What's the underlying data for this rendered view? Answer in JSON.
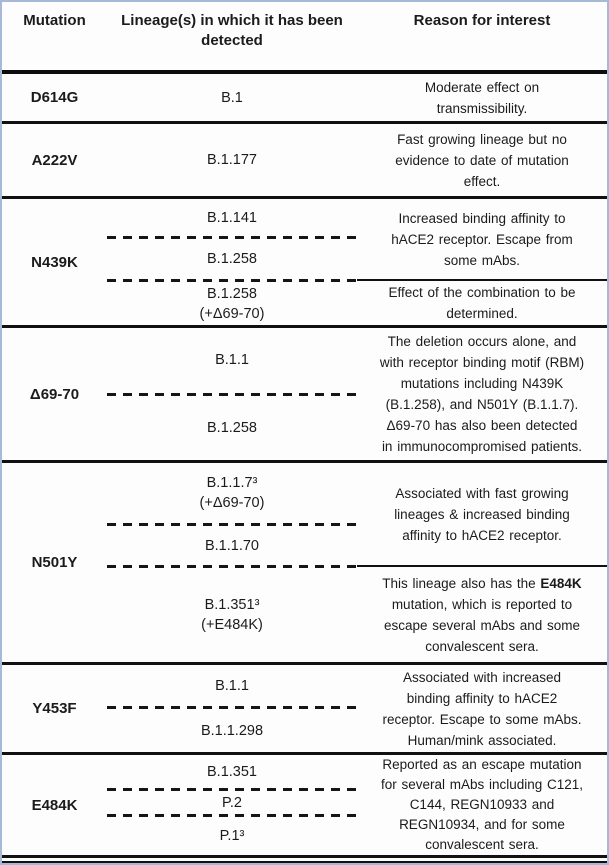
{
  "header": {
    "mutation": "Mutation",
    "lineage": "Lineage(s) in which it has been\ndetected",
    "reason": "Reason for interest"
  },
  "rows": [
    {
      "mutation": "D614G",
      "lineages": [
        "B.1"
      ],
      "reasons": [
        {
          "text": "Moderate effect on\ntransmissibility."
        }
      ]
    },
    {
      "mutation": "A222V",
      "lineages": [
        "B.1.177"
      ],
      "reasons": [
        {
          "text": "Fast growing lineage but no\nevidence to date of mutation\neffect."
        }
      ]
    },
    {
      "mutation": "N439K",
      "lineages": [
        "B.1.141",
        "B.1.258",
        "B.1.258\n(+Δ69-70)"
      ],
      "reasons": [
        {
          "text": "Increased binding affinity to\nhACE2 receptor. Escape from\nsome mAbs."
        },
        {
          "text": "Effect of the combination to be\ndetermined."
        }
      ]
    },
    {
      "mutation": "Δ69-70",
      "lineages": [
        "B.1.1",
        "B.1.258"
      ],
      "reasons": [
        {
          "text": "The deletion occurs alone, and\nwith receptor binding motif (RBM)\nmutations including N439K\n(B.1.258), and N501Y (B.1.1.7).\nΔ69-70 has also been detected\nin immunocompromised patients."
        }
      ]
    },
    {
      "mutation": "N501Y",
      "lineages": [
        "B.1.1.7³\n(+Δ69-70)",
        "B.1.1.70",
        "B.1.351³\n(+E484K)"
      ],
      "reasons": [
        {
          "text": "Associated with fast growing\nlineages & increased binding\naffinity to hACE2 receptor."
        },
        {
          "pre": "This lineage also has the ",
          "bold": "E484K",
          "post": "\nmutation, which is reported to\nescape several mAbs and some\nconvalescent sera."
        }
      ]
    },
    {
      "mutation": "Y453F",
      "lineages": [
        "B.1.1",
        "B.1.1.298"
      ],
      "reasons": [
        {
          "text": "Associated with increased\nbinding affinity to hACE2\nreceptor. Escape to some mAbs.\nHuman/mink associated."
        }
      ]
    },
    {
      "mutation": "E484K",
      "lineages": [
        "B.1.351",
        "P.2",
        "P.1³"
      ],
      "reasons": [
        {
          "text": "Reported as an escape mutation\nfor several mAbs including C121,\nC144, REGN10933 and\nREGN10934, and for some\nconvalescent sera."
        }
      ]
    }
  ]
}
